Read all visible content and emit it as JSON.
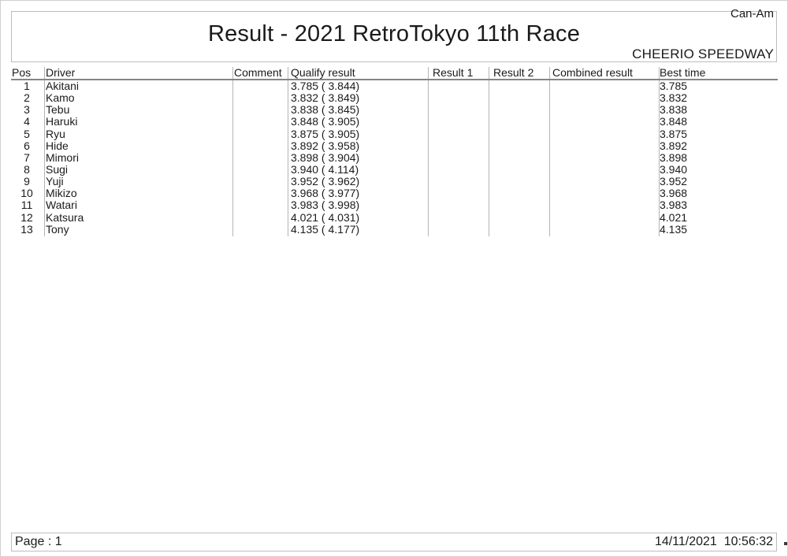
{
  "doc": {
    "brand": "Can-Am",
    "title": "Result - 2021 RetroTokyo 11th Race",
    "venue": "CHEERIO SPEEDWAY"
  },
  "table": {
    "columns": [
      "Pos",
      "Driver",
      "Comment",
      "Qualify result",
      "Result 1",
      "Result 2",
      "Combined result",
      "Best time"
    ],
    "rows": [
      {
        "pos": "1",
        "driver": "Akitani",
        "comment": "",
        "qualify": "3.785 ( 3.844)",
        "result1": "",
        "result2": "",
        "combined": "",
        "best": "3.785"
      },
      {
        "pos": "2",
        "driver": "Kamo",
        "comment": "",
        "qualify": "3.832 ( 3.849)",
        "result1": "",
        "result2": "",
        "combined": "",
        "best": "3.832"
      },
      {
        "pos": "3",
        "driver": "Tebu",
        "comment": "",
        "qualify": "3.838 ( 3.845)",
        "result1": "",
        "result2": "",
        "combined": "",
        "best": "3.838"
      },
      {
        "pos": "4",
        "driver": "Haruki",
        "comment": "",
        "qualify": "3.848 ( 3.905)",
        "result1": "",
        "result2": "",
        "combined": "",
        "best": "3.848"
      },
      {
        "pos": "5",
        "driver": "Ryu",
        "comment": "",
        "qualify": "3.875 ( 3.905)",
        "result1": "",
        "result2": "",
        "combined": "",
        "best": "3.875"
      },
      {
        "pos": "6",
        "driver": "Hide",
        "comment": "",
        "qualify": "3.892 ( 3.958)",
        "result1": "",
        "result2": "",
        "combined": "",
        "best": "3.892"
      },
      {
        "pos": "7",
        "driver": "Mimori",
        "comment": "",
        "qualify": "3.898 ( 3.904)",
        "result1": "",
        "result2": "",
        "combined": "",
        "best": "3.898"
      },
      {
        "pos": "8",
        "driver": "Sugi",
        "comment": "",
        "qualify": "3.940 ( 4.114)",
        "result1": "",
        "result2": "",
        "combined": "",
        "best": "3.940"
      },
      {
        "pos": "9",
        "driver": "Yuji",
        "comment": "",
        "qualify": "3.952 ( 3.962)",
        "result1": "",
        "result2": "",
        "combined": "",
        "best": "3.952"
      },
      {
        "pos": "10",
        "driver": "Mikizo",
        "comment": "",
        "qualify": "3.968 ( 3.977)",
        "result1": "",
        "result2": "",
        "combined": "",
        "best": "3.968"
      },
      {
        "pos": "11",
        "driver": "Watari",
        "comment": "",
        "qualify": "3.983 ( 3.998)",
        "result1": "",
        "result2": "",
        "combined": "",
        "best": "3.983"
      },
      {
        "pos": "12",
        "driver": "Katsura",
        "comment": "",
        "qualify": "4.021 ( 4.031)",
        "result1": "",
        "result2": "",
        "combined": "",
        "best": "4.021"
      },
      {
        "pos": "13",
        "driver": "Tony",
        "comment": "",
        "qualify": "4.135 ( 4.177)",
        "result1": "",
        "result2": "",
        "combined": "",
        "best": "4.135"
      }
    ]
  },
  "footer": {
    "page_label": "Page : 1",
    "datetime": "14/11/2021  10:56:32"
  }
}
